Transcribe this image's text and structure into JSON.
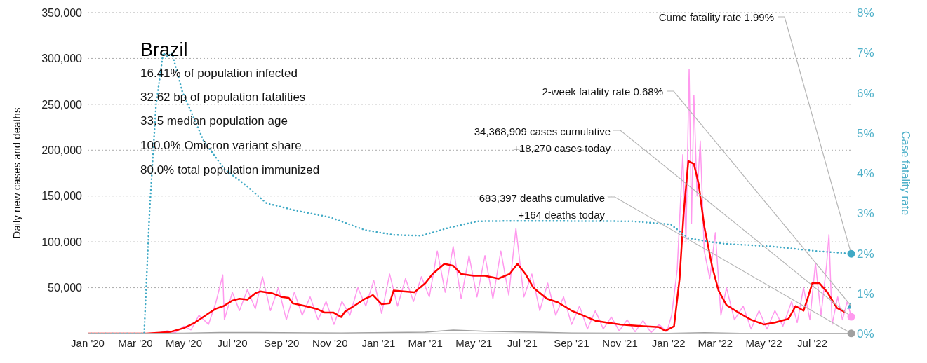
{
  "chart_data": {
    "type": "line",
    "title": "Brazil",
    "ylabel": "Daily new cases and deaths",
    "y2label": "Case fatality rate",
    "xlim": [
      "2020-01-01",
      "2022-08-19"
    ],
    "xticks": [
      {
        "value": "2020-01-01",
        "label": "Jan '20"
      },
      {
        "value": "2020-03-01",
        "label": "Mar '20"
      },
      {
        "value": "2020-05-01",
        "label": "May '20"
      },
      {
        "value": "2020-07-01",
        "label": "Jul '20"
      },
      {
        "value": "2020-09-01",
        "label": "Sep '20"
      },
      {
        "value": "2020-11-01",
        "label": "Nov '20"
      },
      {
        "value": "2021-01-01",
        "label": "Jan '21"
      },
      {
        "value": "2021-03-01",
        "label": "Mar '21"
      },
      {
        "value": "2021-05-01",
        "label": "May '21"
      },
      {
        "value": "2021-07-01",
        "label": "Jul '21"
      },
      {
        "value": "2021-09-01",
        "label": "Sep '21"
      },
      {
        "value": "2021-11-01",
        "label": "Nov '21"
      },
      {
        "value": "2022-01-01",
        "label": "Jan '22"
      },
      {
        "value": "2022-03-01",
        "label": "Mar '22"
      },
      {
        "value": "2022-05-01",
        "label": "May '22"
      },
      {
        "value": "2022-07-01",
        "label": "Jul '22"
      }
    ],
    "ylim": [
      0,
      350000
    ],
    "yticks": [
      {
        "value": 0,
        "label": null
      },
      {
        "value": 50000,
        "label": "50,000"
      },
      {
        "value": 100000,
        "label": "100,000"
      },
      {
        "value": 150000,
        "label": "150,000"
      },
      {
        "value": 200000,
        "label": "200,000"
      },
      {
        "value": 250000,
        "label": "250,000"
      },
      {
        "value": 300000,
        "label": "300,000"
      },
      {
        "value": 350000,
        "label": "350,000"
      }
    ],
    "y2lim": [
      0,
      8
    ],
    "y2ticks": [
      {
        "value": 0,
        "label": "0%"
      },
      {
        "value": 1,
        "label": "1%"
      },
      {
        "value": 2,
        "label": "2%"
      },
      {
        "value": 3,
        "label": "3%"
      },
      {
        "value": 4,
        "label": "4%"
      },
      {
        "value": 5,
        "label": "5%"
      },
      {
        "value": 6,
        "label": "6%"
      },
      {
        "value": 7,
        "label": "7%"
      },
      {
        "value": 8,
        "label": "8%"
      }
    ],
    "grid": "y",
    "series": [
      {
        "color": "#ff99ee",
        "x": [
          "2020-01-01",
          "2020-03-15",
          "2020-04-01",
          "2020-04-10",
          "2020-04-20",
          "2020-05-01",
          "2020-05-10",
          "2020-05-20",
          "2020-06-01",
          "2020-06-10",
          "2020-06-19",
          "2020-06-21",
          "2020-07-01",
          "2020-07-10",
          "2020-07-20",
          "2020-07-30",
          "2020-08-08",
          "2020-08-18",
          "2020-08-28",
          "2020-09-07",
          "2020-09-17",
          "2020-09-27",
          "2020-10-07",
          "2020-10-17",
          "2020-10-27",
          "2020-11-06",
          "2020-11-16",
          "2020-11-26",
          "2020-12-06",
          "2020-12-16",
          "2020-12-26",
          "2021-01-05",
          "2021-01-15",
          "2021-01-25",
          "2021-02-04",
          "2021-02-14",
          "2021-02-24",
          "2021-03-06",
          "2021-03-16",
          "2021-03-26",
          "2021-04-05",
          "2021-04-15",
          "2021-04-25",
          "2021-05-05",
          "2021-05-15",
          "2021-05-25",
          "2021-06-04",
          "2021-06-14",
          "2021-06-23",
          "2021-07-03",
          "2021-07-13",
          "2021-07-23",
          "2021-08-02",
          "2021-08-12",
          "2021-08-22",
          "2021-09-01",
          "2021-09-11",
          "2021-09-21",
          "2021-10-01",
          "2021-10-11",
          "2021-10-21",
          "2021-10-31",
          "2021-11-10",
          "2021-11-20",
          "2021-11-30",
          "2021-12-10",
          "2021-12-20",
          "2021-12-30",
          "2022-01-05",
          "2022-01-12",
          "2022-01-19",
          "2022-01-23",
          "2022-01-27",
          "2022-01-30",
          "2022-02-02",
          "2022-02-06",
          "2022-02-10",
          "2022-02-15",
          "2022-02-22",
          "2022-03-01",
          "2022-03-08",
          "2022-03-15",
          "2022-03-25",
          "2022-04-05",
          "2022-04-15",
          "2022-04-25",
          "2022-05-05",
          "2022-05-15",
          "2022-05-25",
          "2022-06-05",
          "2022-06-12",
          "2022-06-20",
          "2022-06-28",
          "2022-07-05",
          "2022-07-12",
          "2022-07-19",
          "2022-07-22",
          "2022-07-26",
          "2022-08-02",
          "2022-08-08",
          "2022-08-14",
          "2022-08-19"
        ],
        "values": [
          0,
          0,
          1000,
          3000,
          1000,
          8000,
          4000,
          20000,
          10000,
          33000,
          64000,
          15000,
          45000,
          25000,
          48000,
          27000,
          62000,
          25000,
          50000,
          15000,
          45000,
          20000,
          40000,
          15000,
          35000,
          10000,
          35000,
          20000,
          50000,
          30000,
          58000,
          22000,
          65000,
          30000,
          60000,
          35000,
          62000,
          40000,
          90000,
          45000,
          95000,
          38000,
          85000,
          40000,
          85000,
          38000,
          90000,
          42000,
          115000,
          40000,
          65000,
          25000,
          55000,
          20000,
          40000,
          10000,
          30000,
          5000,
          25000,
          5000,
          18000,
          3000,
          15000,
          2000,
          14000,
          1000,
          10000,
          2000,
          20000,
          70000,
          195000,
          100000,
          288000,
          120000,
          260000,
          150000,
          210000,
          90000,
          60000,
          110000,
          20000,
          50000,
          15000,
          30000,
          5000,
          25000,
          5000,
          25000,
          8000,
          35000,
          12000,
          50000,
          15000,
          77000,
          20000,
          75000,
          108000,
          10000,
          40000,
          15000,
          35000,
          18270
        ]
      },
      {
        "color": "#ff0000",
        "x": [
          "2020-01-01",
          "2020-03-15",
          "2020-04-01",
          "2020-04-15",
          "2020-05-01",
          "2020-05-15",
          "2020-06-01",
          "2020-06-10",
          "2020-06-20",
          "2020-07-01",
          "2020-07-10",
          "2020-07-20",
          "2020-07-30",
          "2020-08-05",
          "2020-08-20",
          "2020-09-01",
          "2020-09-10",
          "2020-09-15",
          "2020-10-01",
          "2020-10-15",
          "2020-10-25",
          "2020-11-05",
          "2020-11-15",
          "2020-11-20",
          "2020-12-01",
          "2020-12-15",
          "2020-12-25",
          "2021-01-05",
          "2021-01-15",
          "2021-01-20",
          "2021-02-01",
          "2021-02-15",
          "2021-03-01",
          "2021-03-10",
          "2021-03-25",
          "2021-04-05",
          "2021-04-15",
          "2021-05-01",
          "2021-05-15",
          "2021-06-01",
          "2021-06-15",
          "2021-06-25",
          "2021-07-05",
          "2021-07-15",
          "2021-08-01",
          "2021-08-15",
          "2021-09-01",
          "2021-09-15",
          "2021-10-01",
          "2021-10-15",
          "2021-11-01",
          "2021-11-15",
          "2021-12-01",
          "2021-12-20",
          "2021-12-28",
          "2022-01-08",
          "2022-01-15",
          "2022-01-20",
          "2022-01-26",
          "2022-02-02",
          "2022-02-08",
          "2022-02-15",
          "2022-02-25",
          "2022-03-05",
          "2022-03-15",
          "2022-04-01",
          "2022-04-15",
          "2022-05-01",
          "2022-05-15",
          "2022-06-01",
          "2022-06-10",
          "2022-06-20",
          "2022-06-25",
          "2022-07-01",
          "2022-07-10",
          "2022-07-20",
          "2022-08-01",
          "2022-08-10"
        ],
        "values": [
          0,
          0,
          1000,
          2000,
          6000,
          12000,
          22000,
          27000,
          30000,
          36000,
          38000,
          37000,
          44000,
          46000,
          44000,
          40000,
          39000,
          33000,
          30000,
          27000,
          23000,
          23000,
          18000,
          24000,
          30000,
          38000,
          42000,
          32000,
          33000,
          47000,
          46000,
          45000,
          55000,
          65000,
          76000,
          74000,
          65000,
          63000,
          63000,
          60000,
          65000,
          76000,
          65000,
          50000,
          38000,
          34000,
          25000,
          20000,
          14000,
          12000,
          10000,
          9000,
          8000,
          7000,
          3000,
          8000,
          60000,
          130000,
          188000,
          185000,
          163000,
          117000,
          73000,
          47000,
          31000,
          22000,
          15000,
          10000,
          12000,
          16000,
          30000,
          25000,
          38000,
          55000,
          55000,
          45000,
          28000,
          24000
        ]
      },
      {
        "color": "#a0a0a0",
        "x": [
          "2020-01-01",
          "2020-03-15",
          "2020-05-01",
          "2020-06-15",
          "2020-08-01",
          "2020-10-01",
          "2020-11-15",
          "2021-01-15",
          "2021-03-01",
          "2021-04-05",
          "2021-05-15",
          "2021-07-01",
          "2021-09-01",
          "2021-11-01",
          "2022-01-01",
          "2022-02-15",
          "2022-04-01",
          "2022-06-01",
          "2022-07-15",
          "2022-08-19"
        ],
        "values": [
          0,
          0,
          400,
          1200,
          1100,
          700,
          500,
          1100,
          1500,
          3900,
          2500,
          1800,
          600,
          300,
          100,
          900,
          250,
          150,
          250,
          164
        ]
      },
      {
        "color": "#3fa9c5",
        "axis": "y2",
        "line_style": "dotted",
        "x": [
          "2020-01-01",
          "2020-03-12",
          "2020-03-19",
          "2020-03-27",
          "2020-04-05",
          "2020-04-10",
          "2020-04-16",
          "2020-04-29",
          "2020-05-26",
          "2020-06-21",
          "2020-07-18",
          "2020-08-13",
          "2020-09-18",
          "2020-11-01",
          "2020-12-15",
          "2021-01-20",
          "2021-02-24",
          "2021-03-31",
          "2021-05-06",
          "2021-06-28",
          "2021-11-16",
          "2022-01-04",
          "2022-01-26",
          "2022-02-21",
          "2022-03-11",
          "2022-05-12",
          "2022-07-04",
          "2022-08-19"
        ],
        "values": [
          0,
          0,
          3.1,
          5.7,
          7.0,
          6.9,
          7.0,
          6.04,
          4.8,
          4.1,
          3.7,
          3.25,
          3.07,
          2.9,
          2.58,
          2.46,
          2.44,
          2.64,
          2.8,
          2.81,
          2.8,
          2.72,
          2.38,
          2.29,
          2.24,
          2.17,
          2.06,
          1.99
        ]
      },
      {
        "type": "scatter",
        "color": "#3fa9c5",
        "axis": "y2",
        "marker": "triangle",
        "x": [
          "2022-08-19"
        ],
        "values": [
          0.68
        ]
      }
    ],
    "annotations": [
      "16.41% of population infected",
      "32.62 bp of population fatalities",
      "33.5 median population age",
      "100.0% Omicron variant share",
      "80.0% total population immunized",
      {
        "text": "Cume fatality rate 1.99%",
        "x": "2022-08-19",
        "y": 87000
      },
      {
        "text": "2-week fatality rate 0.68%",
        "x": "2022-08-19",
        "y": 30000
      },
      {
        "text": "34,368,909 cases cumulative\n+18,270 cases today",
        "x": "2022-08-19",
        "y": 18270
      },
      {
        "text": "683,397 deaths cumulative\n+164 deaths today",
        "x": "2022-08-19",
        "y": 164
      }
    ]
  }
}
